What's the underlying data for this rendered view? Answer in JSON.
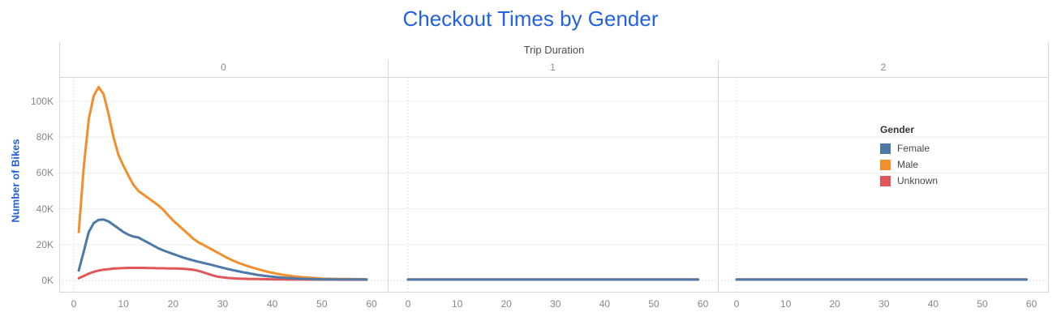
{
  "chart_data": {
    "type": "line",
    "title": "Checkout Times by Gender",
    "facet": {
      "field_label": "Trip Duration",
      "panel_labels": [
        "0",
        "1",
        "2"
      ]
    },
    "ylabel": "Number of Bikes",
    "xlabel": "",
    "xlim": [
      0,
      60
    ],
    "ylim": [
      0,
      100000
    ],
    "grid": true,
    "y_units": "thousands of bikes (K)",
    "y_ticks": [
      {
        "value_thousands": 0,
        "label": "0K"
      },
      {
        "value_thousands": 20,
        "label": "20K"
      },
      {
        "value_thousands": 40,
        "label": "40K"
      },
      {
        "value_thousands": 60,
        "label": "60K"
      },
      {
        "value_thousands": 80,
        "label": "80K"
      },
      {
        "value_thousands": 100,
        "label": "100K"
      }
    ],
    "x_ticks": [
      {
        "value": 0,
        "label": "0"
      },
      {
        "value": 10,
        "label": "10"
      },
      {
        "value": 20,
        "label": "20"
      },
      {
        "value": 30,
        "label": "30"
      },
      {
        "value": 40,
        "label": "40"
      },
      {
        "value": 50,
        "label": "50"
      },
      {
        "value": 60,
        "label": "60"
      }
    ],
    "legend": {
      "title": "Gender",
      "position": "inside-right",
      "entries": [
        {
          "label": "Female",
          "color": "#4e79a7"
        },
        {
          "label": "Male",
          "color": "#f28e2b"
        },
        {
          "label": "Unknown",
          "color": "#e15759"
        }
      ]
    },
    "series": [
      {
        "name": "Female",
        "color": "#4e79a7",
        "panels": [
          {
            "x": [
              1,
              2,
              3,
              4,
              5,
              6,
              7,
              8,
              9,
              10,
              11,
              12,
              13,
              14,
              15,
              16,
              17,
              18,
              19,
              20,
              21,
              22,
              23,
              24,
              25,
              26,
              27,
              28,
              29,
              30,
              31,
              32,
              33,
              34,
              35,
              36,
              37,
              38,
              39,
              40,
              41,
              42,
              43,
              44,
              45,
              46,
              47,
              48,
              49,
              50,
              51,
              52,
              53,
              54,
              55,
              56,
              57,
              58,
              59
            ],
            "y_thousands": [
              5.5,
              16,
              27,
              32,
              33.8,
              34,
              33,
              31,
              29,
              27,
              25.5,
              24.5,
              24,
              22.5,
              21,
              19.5,
              18,
              16.8,
              15.8,
              14.8,
              13.8,
              12.8,
              12,
              11.2,
              10.5,
              9.8,
              9.2,
              8.5,
              7.8,
              7.1,
              6.4,
              5.8,
              5.2,
              4.6,
              4.1,
              3.6,
              3.1,
              2.7,
              2.4,
              2.1,
              1.8,
              1.6,
              1.4,
              1.2,
              1.05,
              0.9,
              0.8,
              0.75,
              0.7,
              0.65,
              0.62,
              0.6,
              0.58,
              0.56,
              0.55,
              0.54,
              0.53,
              0.52,
              0.51
            ]
          },
          {
            "x": [
              0,
              59
            ],
            "y_thousands": [
              0.5,
              0.5
            ]
          },
          {
            "x": [
              0,
              59
            ],
            "y_thousands": [
              0.5,
              0.5
            ]
          }
        ]
      },
      {
        "name": "Male",
        "color": "#f28e2b",
        "panels": [
          {
            "x": [
              1,
              2,
              3,
              4,
              5,
              6,
              7,
              8,
              9,
              10,
              11,
              12,
              13,
              14,
              15,
              16,
              17,
              18,
              19,
              20,
              21,
              22,
              23,
              24,
              25,
              26,
              27,
              28,
              29,
              30,
              31,
              32,
              33,
              34,
              35,
              36,
              37,
              38,
              39,
              40,
              41,
              42,
              43,
              44,
              45,
              46,
              47,
              48,
              49,
              50,
              51,
              52,
              53,
              54,
              55,
              56,
              57,
              58,
              59
            ],
            "y_thousands": [
              27,
              63,
              90,
              103,
              108,
              104,
              93,
              80,
              70,
              64,
              58.5,
              53.5,
              50,
              48,
              46,
              44,
              42,
              39.5,
              36.5,
              33.5,
              31,
              28.5,
              26,
              23.5,
              21.5,
              20,
              18.5,
              17,
              15.5,
              14,
              12.5,
              11.2,
              10,
              9,
              8,
              7.2,
              6.4,
              5.6,
              4.9,
              4.3,
              3.7,
              3.2,
              2.8,
              2.4,
              2.1,
              1.8,
              1.6,
              1.4,
              1.2,
              1.05,
              0.95,
              0.9,
              0.85,
              0.8,
              0.78,
              0.75,
              0.73,
              0.71,
              0.7
            ]
          },
          {
            "x": [
              0,
              59
            ],
            "y_thousands": [
              0.5,
              0.5
            ]
          },
          {
            "x": [
              0,
              59
            ],
            "y_thousands": [
              0.5,
              0.5
            ]
          }
        ]
      },
      {
        "name": "Unknown",
        "color": "#e15759",
        "panels": [
          {
            "x": [
              1,
              2,
              3,
              4,
              5,
              6,
              7,
              8,
              9,
              10,
              11,
              12,
              13,
              14,
              15,
              16,
              17,
              18,
              19,
              20,
              21,
              22,
              23,
              24,
              25,
              26,
              27,
              28,
              29,
              30,
              31,
              32,
              33,
              34,
              35,
              36,
              37,
              38,
              39,
              40,
              41,
              42,
              43,
              44,
              45,
              46,
              47,
              48,
              49,
              50,
              51,
              52,
              53,
              54,
              55,
              56,
              57,
              58,
              59
            ],
            "y_thousands": [
              1.2,
              2.5,
              3.8,
              4.8,
              5.5,
              6.0,
              6.3,
              6.6,
              6.8,
              6.9,
              7.0,
              7.0,
              7.0,
              7.0,
              6.9,
              6.9,
              6.8,
              6.8,
              6.7,
              6.7,
              6.6,
              6.5,
              6.3,
              6.0,
              5.4,
              4.6,
              3.7,
              2.8,
              2.1,
              1.7,
              1.4,
              1.2,
              1.05,
              0.95,
              0.88,
              0.82,
              0.77,
              0.72,
              0.68,
              0.64,
              0.6,
              0.57,
              0.54,
              0.52,
              0.5,
              0.48,
              0.47,
              0.46,
              0.45,
              0.44,
              0.44,
              0.43,
              0.43,
              0.42,
              0.42,
              0.42,
              0.41,
              0.41,
              0.41
            ]
          },
          {
            "x": [
              0,
              59
            ],
            "y_thousands": [
              0.5,
              0.5
            ]
          },
          {
            "x": [
              0,
              59
            ],
            "y_thousands": [
              0.5,
              0.5
            ]
          }
        ]
      }
    ],
    "style_colors": {
      "title_blue": "#2361e1",
      "gridline": "#ededed",
      "zero_dotted_line": "#c6c6c6",
      "panel_border": "#d7d7d7",
      "tick_text": "#878787"
    }
  }
}
